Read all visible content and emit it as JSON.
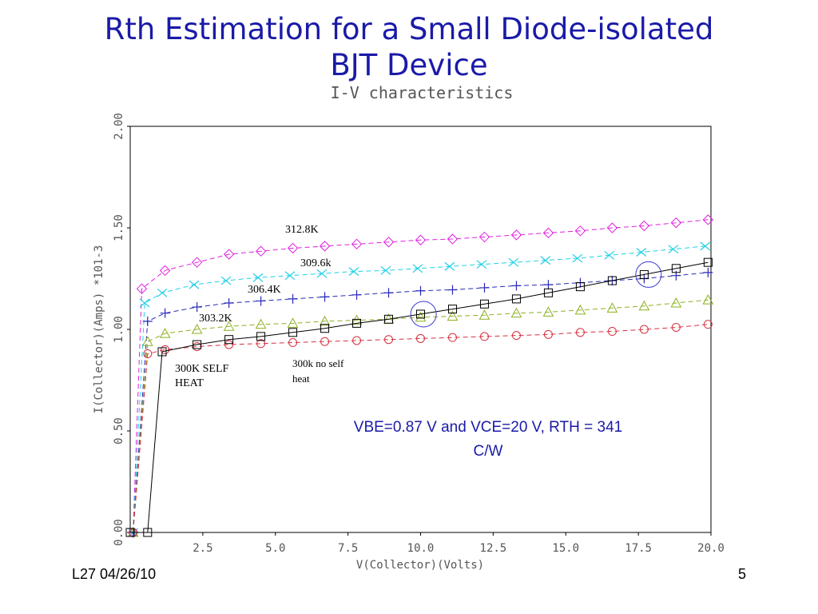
{
  "slide": {
    "title_line1": "Rth Estimation for a Small Diode-isolated",
    "title_line2": "BJT Device",
    "footer_left": "L27 04/26/10",
    "page_number": "5"
  },
  "chart_data": {
    "type": "line",
    "title": "I-V characteristics",
    "xlabel": "V(Collector)(Volts)",
    "ylabel": "I(Collector)(Amps) *10^-3",
    "ylabel_display": "I(Collector)(Amps) *101-3",
    "xlim": [
      0,
      20.0
    ],
    "ylim": [
      0,
      2.0
    ],
    "x_ticks": [
      "2.5",
      "5.0",
      "7.5",
      "10.0",
      "12.5",
      "15.0",
      "17.5",
      "20.0"
    ],
    "y_ticks": [
      "0.00",
      "0.50",
      "1.00",
      "1.50",
      "2.00"
    ],
    "grid": false,
    "series": [
      {
        "name": "312.8K",
        "color": "#e020e0",
        "marker": "diamond",
        "dash": "dashed",
        "x": [
          0.1,
          0.4,
          1.2,
          2.3,
          3.4,
          4.5,
          5.6,
          6.7,
          7.8,
          8.9,
          10.0,
          11.1,
          12.2,
          13.3,
          14.4,
          15.5,
          16.6,
          17.7,
          18.8,
          19.9
        ],
        "y": [
          0.0,
          1.2,
          1.29,
          1.33,
          1.37,
          1.385,
          1.4,
          1.41,
          1.42,
          1.43,
          1.44,
          1.445,
          1.455,
          1.465,
          1.475,
          1.485,
          1.5,
          1.51,
          1.525,
          1.54
        ]
      },
      {
        "name": "309.6k",
        "color": "#20d0e8",
        "marker": "x",
        "dash": "dashed",
        "x": [
          0.1,
          0.5,
          1.1,
          2.2,
          3.3,
          4.4,
          5.5,
          6.6,
          7.7,
          8.8,
          9.9,
          11.0,
          12.1,
          13.2,
          14.3,
          15.4,
          16.5,
          17.6,
          18.7,
          19.8
        ],
        "y": [
          0.0,
          1.13,
          1.18,
          1.22,
          1.24,
          1.255,
          1.265,
          1.275,
          1.285,
          1.29,
          1.3,
          1.31,
          1.32,
          1.33,
          1.34,
          1.35,
          1.365,
          1.38,
          1.395,
          1.41
        ]
      },
      {
        "name": "306.4K",
        "color": "#2a2ab8",
        "marker": "plus",
        "dash": "dashed",
        "x": [
          0.1,
          0.6,
          1.2,
          2.3,
          3.4,
          4.5,
          5.6,
          6.7,
          7.8,
          8.9,
          10.0,
          11.1,
          12.2,
          13.3,
          14.4,
          15.5,
          16.6,
          17.7,
          18.8,
          19.9
        ],
        "y": [
          0.0,
          1.04,
          1.08,
          1.11,
          1.13,
          1.14,
          1.15,
          1.16,
          1.17,
          1.18,
          1.19,
          1.195,
          1.205,
          1.215,
          1.22,
          1.23,
          1.24,
          1.25,
          1.265,
          1.28
        ]
      },
      {
        "name": "303.2K",
        "color": "#8ab020",
        "marker": "triangle",
        "dash": "dashed",
        "x": [
          0.1,
          0.6,
          1.2,
          2.3,
          3.4,
          4.5,
          5.6,
          6.7,
          7.8,
          8.9,
          10.0,
          11.1,
          12.2,
          13.3,
          14.4,
          15.5,
          16.6,
          17.7,
          18.8,
          19.9
        ],
        "y": [
          0.0,
          0.94,
          0.98,
          1.0,
          1.015,
          1.025,
          1.03,
          1.04,
          1.045,
          1.05,
          1.06,
          1.065,
          1.07,
          1.08,
          1.085,
          1.095,
          1.105,
          1.115,
          1.13,
          1.145
        ]
      },
      {
        "name": "300k no self heat",
        "color": "#d83040",
        "marker": "circle",
        "dash": "dashed",
        "x": [
          0.1,
          0.6,
          1.2,
          2.3,
          3.4,
          4.5,
          5.6,
          6.7,
          7.8,
          8.9,
          10.0,
          11.1,
          12.2,
          13.3,
          14.4,
          15.5,
          16.6,
          17.7,
          18.8,
          19.9
        ],
        "y": [
          0.0,
          0.88,
          0.9,
          0.915,
          0.925,
          0.93,
          0.935,
          0.94,
          0.945,
          0.95,
          0.955,
          0.96,
          0.965,
          0.97,
          0.975,
          0.985,
          0.99,
          1.0,
          1.01,
          1.025
        ]
      },
      {
        "name": "300K SELF HEAT",
        "color": "#000000",
        "marker": "square",
        "dash": "solid",
        "x": [
          0.0,
          0.6,
          1.1,
          2.3,
          3.4,
          4.5,
          5.6,
          6.7,
          7.8,
          8.9,
          10.0,
          11.1,
          12.2,
          13.3,
          14.4,
          15.5,
          16.6,
          17.7,
          18.8,
          19.9
        ],
        "y": [
          0.0,
          0.0,
          0.89,
          0.925,
          0.95,
          0.965,
          0.985,
          1.005,
          1.03,
          1.05,
          1.075,
          1.1,
          1.125,
          1.15,
          1.18,
          1.21,
          1.24,
          1.27,
          1.3,
          1.33
        ]
      }
    ],
    "highlight_circles": [
      {
        "x": 10.1,
        "y": 1.075
      },
      {
        "x": 17.85,
        "y": 1.27
      }
    ],
    "annotations": {
      "label_312_8": "312.8K",
      "label_309_6": "309.6k",
      "label_306_4": "306.4K",
      "label_303_2": "303.2K",
      "label_selfheat_1": "300K SELF",
      "label_selfheat_2": "HEAT",
      "label_noself_1": "300k no self",
      "label_noself_2": "heat",
      "result_line1": "VBE=0.87 V and VCE=20 V, RTH = 341",
      "result_line2": "C/W"
    }
  }
}
